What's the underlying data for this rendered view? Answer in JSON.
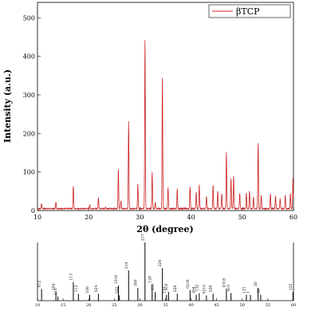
{
  "chart_data": [
    {
      "type": "line",
      "xlabel": "2θ (degree)",
      "ylabel": "Intensity (a.u.)",
      "xlim": [
        10,
        60
      ],
      "ylim": [
        0,
        540
      ],
      "xticks": [
        "10",
        "20",
        "30",
        "40",
        "50",
        "60"
      ],
      "yticks": [
        "0",
        "100",
        "200",
        "300",
        "400",
        "500"
      ],
      "legend": {
        "placement": "top-right",
        "entries": [
          {
            "label": "βTCP",
            "color": "#cc2222"
          }
        ]
      },
      "series": [
        {
          "name": "βTCP",
          "color": "#cc2222",
          "baseline": 5,
          "peaks": [
            {
              "x": 10.8,
              "y": 18
            },
            {
              "x": 13.6,
              "y": 22
            },
            {
              "x": 17.0,
              "y": 64
            },
            {
              "x": 20.2,
              "y": 15
            },
            {
              "x": 21.9,
              "y": 34
            },
            {
              "x": 23.3,
              "y": 8
            },
            {
              "x": 25.8,
              "y": 108
            },
            {
              "x": 26.3,
              "y": 25
            },
            {
              "x": 27.8,
              "y": 232
            },
            {
              "x": 29.6,
              "y": 68
            },
            {
              "x": 31.0,
              "y": 442
            },
            {
              "x": 32.4,
              "y": 100
            },
            {
              "x": 33.0,
              "y": 22
            },
            {
              "x": 34.4,
              "y": 345
            },
            {
              "x": 35.5,
              "y": 60
            },
            {
              "x": 37.3,
              "y": 56
            },
            {
              "x": 39.8,
              "y": 62
            },
            {
              "x": 41.0,
              "y": 48
            },
            {
              "x": 41.6,
              "y": 66
            },
            {
              "x": 43.0,
              "y": 36
            },
            {
              "x": 44.3,
              "y": 66
            },
            {
              "x": 45.2,
              "y": 50
            },
            {
              "x": 46.0,
              "y": 44
            },
            {
              "x": 46.9,
              "y": 152
            },
            {
              "x": 47.8,
              "y": 84
            },
            {
              "x": 48.3,
              "y": 88
            },
            {
              "x": 49.5,
              "y": 44
            },
            {
              "x": 50.8,
              "y": 46
            },
            {
              "x": 51.4,
              "y": 50
            },
            {
              "x": 52.2,
              "y": 35
            },
            {
              "x": 53.1,
              "y": 175
            },
            {
              "x": 53.7,
              "y": 40
            },
            {
              "x": 55.5,
              "y": 44
            },
            {
              "x": 56.5,
              "y": 38
            },
            {
              "x": 57.4,
              "y": 32
            },
            {
              "x": 58.4,
              "y": 40
            },
            {
              "x": 59.4,
              "y": 44
            },
            {
              "x": 59.9,
              "y": 84
            }
          ]
        }
      ]
    },
    {
      "type": "bar",
      "xlim": [
        10,
        60
      ],
      "ylim": [
        0,
        1
      ],
      "xticks": [
        "10",
        "15",
        "20",
        "25",
        "30",
        "35",
        "40",
        "45",
        "50",
        "55",
        "60"
      ],
      "reference_peaks": [
        {
          "x": 10.8,
          "h": 0.2,
          "label": "012"
        },
        {
          "x": 13.6,
          "h": 0.15,
          "label": "104"
        },
        {
          "x": 14.0,
          "h": 0.07,
          "label": "110"
        },
        {
          "x": 17.0,
          "h": 0.32,
          "label": "113"
        },
        {
          "x": 18.0,
          "h": 0.12,
          "label": "113"
        },
        {
          "x": 20.2,
          "h": 0.1,
          "label": "108"
        },
        {
          "x": 21.9,
          "h": 0.12,
          "label": "024"
        },
        {
          "x": 25.8,
          "h": 0.26,
          "label": "1010"
        },
        {
          "x": 26.0,
          "h": 0.09,
          "label": "122"
        },
        {
          "x": 27.8,
          "h": 0.52,
          "label": "214"
        },
        {
          "x": 29.6,
          "h": 0.22,
          "label": "300"
        },
        {
          "x": 31.0,
          "h": 1.0,
          "label": "217"
        },
        {
          "x": 32.4,
          "h": 0.28,
          "label": "128"
        },
        {
          "x": 33.0,
          "h": 0.15,
          "label": "211"
        },
        {
          "x": 34.4,
          "h": 0.56,
          "label": "220"
        },
        {
          "x": 35.2,
          "h": 0.1,
          "label": "131"
        },
        {
          "x": 35.6,
          "h": 0.15,
          "label": "210"
        },
        {
          "x": 37.3,
          "h": 0.12,
          "label": "226"
        },
        {
          "x": 39.8,
          "h": 0.18,
          "label": "0216"
        },
        {
          "x": 41.0,
          "h": 0.1,
          "label": "404"
        },
        {
          "x": 41.6,
          "h": 0.13,
          "label": "132"
        },
        {
          "x": 43.0,
          "h": 0.09,
          "label": "0210"
        },
        {
          "x": 44.3,
          "h": 0.12,
          "label": "226"
        },
        {
          "x": 46.9,
          "h": 0.2,
          "label": "0318"
        },
        {
          "x": 47.8,
          "h": 0.13,
          "label": "410"
        },
        {
          "x": 50.8,
          "h": 0.1,
          "label": "121"
        },
        {
          "x": 51.6,
          "h": 0.1,
          "label": "1"
        },
        {
          "x": 53.1,
          "h": 0.22,
          "label": "20"
        },
        {
          "x": 53.6,
          "h": 0.1,
          "label": "22"
        },
        {
          "x": 59.9,
          "h": 0.15,
          "label": "125"
        }
      ]
    }
  ]
}
